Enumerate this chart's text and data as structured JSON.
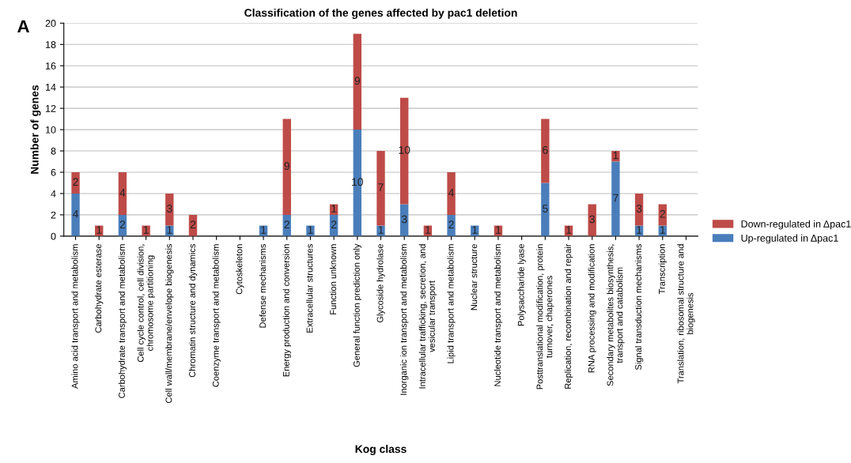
{
  "chart_data": {
    "type": "bar",
    "title": "Classification of the genes affected by pac1 deletion",
    "xlabel": "Kog class",
    "ylabel": "Number of genes",
    "annotations": [
      "A"
    ],
    "categories": [
      "Amino acid transport and metabolism",
      "Carbohydrate esterase",
      "Carbohydrate transport and metabolism",
      "Cell cycle control, cell division,\nchromosome partitioning",
      "Cell wall/membrane/envelope biogenesis",
      "Chromatin structure and dynamics",
      "Coenzyme transport and metabolism",
      "Cytoskeleton",
      "Defense mechanisms",
      "Energy production and conversion",
      "Extracellular structures",
      "Function unknown",
      "General function prediction only",
      "Glycoside hydrolase",
      "Inorganic ion transport and metabolism",
      "Intracellular trafficking, secretion, and\nvesicular transport",
      "Lipid transport and metabolism",
      "Nuclear structure",
      "Nucleotide transport and metabolism",
      "Polysaccharide lyase",
      "Posttranslational modification, protein\nturnover, chaperones",
      "Replication, recombination and repair",
      "RNA processing and modification",
      "Secondary metabolites biosynthesis,\ntransport and catabolism",
      "Signal transduction mechanisms",
      "Transcription",
      "Translation, ribosomal structure and\nbiogenesis"
    ],
    "stacked": true,
    "series": [
      {
        "name": "Up-regulated in Δpac1",
        "color": "#4a7ebb",
        "values": [
          4,
          0,
          2,
          0,
          1,
          0,
          0,
          0,
          1,
          2,
          1,
          2,
          10,
          1,
          3,
          0,
          2,
          1,
          0,
          0,
          5,
          0,
          0,
          7,
          1,
          1,
          0
        ],
        "value_labels": [
          "4",
          null,
          "2",
          null,
          "1",
          null,
          null,
          null,
          "1",
          "2",
          "1",
          "2",
          "10",
          "1",
          "3",
          null,
          "2",
          "1",
          null,
          null,
          "5",
          null,
          null,
          "7",
          "1",
          "1",
          null
        ]
      },
      {
        "name": "Down-regulated in Δpac1",
        "color": "#be4b48",
        "values": [
          2,
          1,
          4,
          1,
          3,
          2,
          0,
          0,
          0,
          9,
          0,
          1,
          9,
          7,
          10,
          1,
          4,
          0,
          1,
          0,
          6,
          1,
          3,
          1,
          3,
          2,
          0
        ],
        "value_labels": [
          "2",
          "1",
          "4",
          "1",
          "3",
          "2",
          null,
          null,
          null,
          "9",
          null,
          "1",
          "9",
          "7",
          "10",
          "1",
          "4",
          null,
          "1",
          null,
          "6",
          "1",
          "3",
          "1",
          "3",
          "2",
          null
        ]
      }
    ],
    "ylim": [
      0,
      20
    ],
    "yticks": [
      0,
      2,
      4,
      6,
      8,
      10,
      12,
      14,
      16,
      18,
      20
    ],
    "grid": "y",
    "legend": "right"
  }
}
